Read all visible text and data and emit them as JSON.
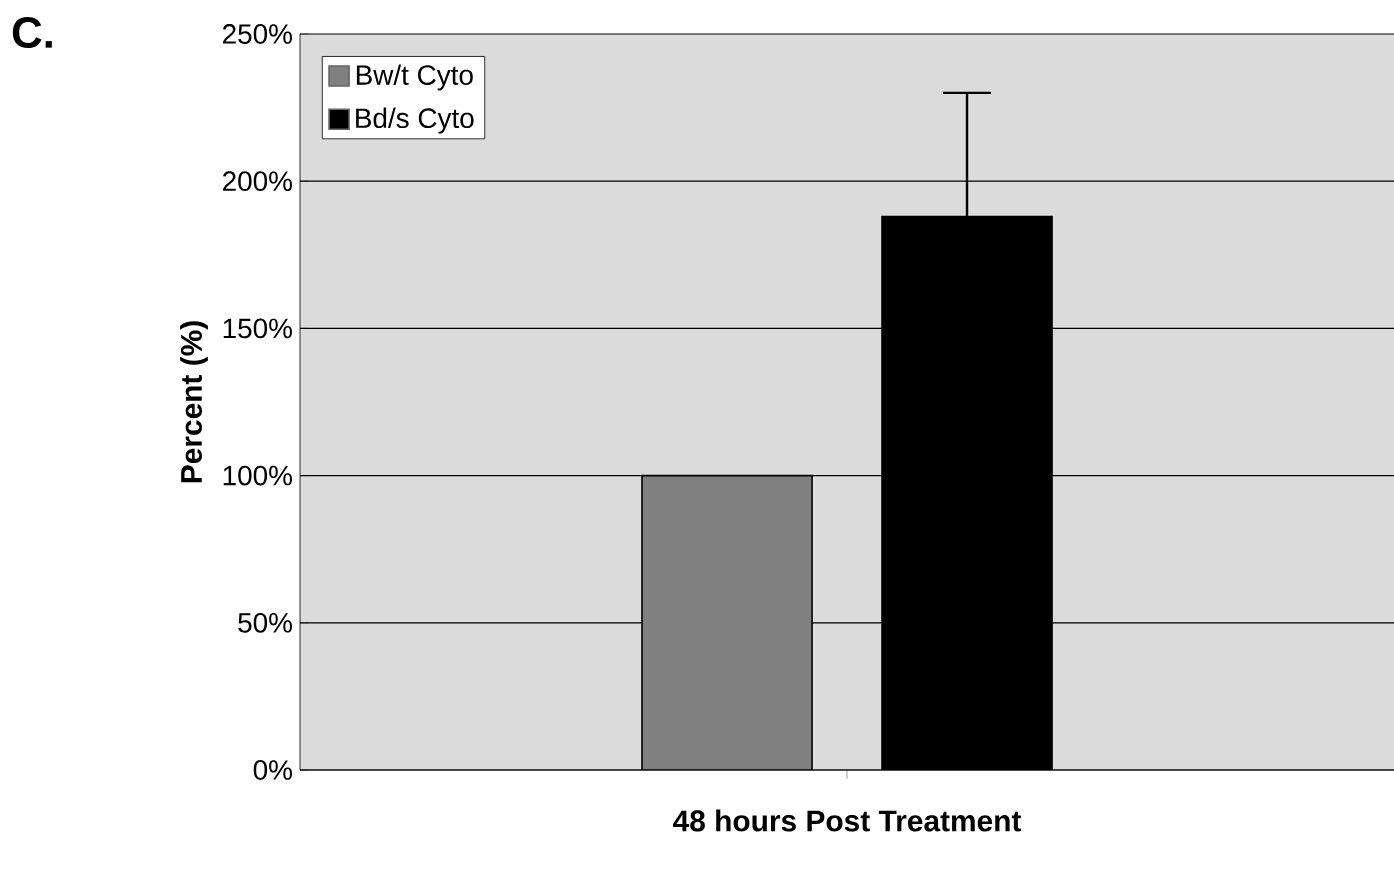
{
  "chart_data": {
    "type": "bar",
    "ylabel": "Percent (%)",
    "annotations": [
      "C."
    ],
    "categories": [
      "48 hours Post Treatment"
    ],
    "series": [
      {
        "name": "Bw/t Cyto",
        "color": "#808080",
        "values": [
          100
        ]
      },
      {
        "name": "Bd/s Cyto",
        "color": "#000000",
        "values": [
          188
        ],
        "errors": [
          42
        ]
      }
    ],
    "ylim": [
      0,
      250
    ],
    "yticks": [
      {
        "value": 0,
        "label": "0%"
      },
      {
        "value": 50,
        "label": "50%"
      },
      {
        "value": 100,
        "label": "100%"
      },
      {
        "value": 150,
        "label": "150%"
      },
      {
        "value": 200,
        "label": "200%"
      },
      {
        "value": 250,
        "label": "250%"
      }
    ],
    "grid": "y",
    "legend": "top left"
  }
}
